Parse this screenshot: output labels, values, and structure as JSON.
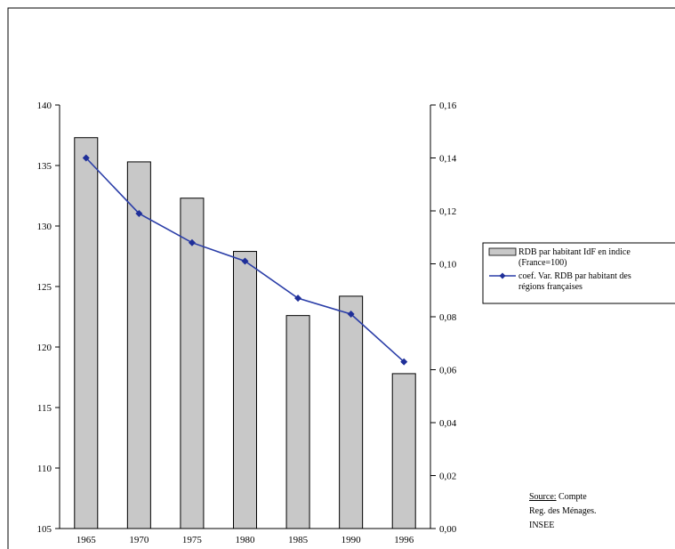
{
  "chart_data": {
    "type": "bar",
    "categories": [
      "1965",
      "1970",
      "1975",
      "1980",
      "1985",
      "1990",
      "1996"
    ],
    "series": [
      {
        "name": "RDB par habitant IdF en indice (France=100)",
        "type": "bar",
        "axis": "left",
        "values": [
          137.3,
          135.3,
          132.3,
          127.9,
          122.6,
          124.2,
          117.8
        ]
      },
      {
        "name": "coef. Var. RDB par habitant des régions françaises",
        "type": "line",
        "axis": "right",
        "values": [
          0.14,
          0.119,
          0.108,
          0.101,
          0.087,
          0.081,
          0.063
        ]
      }
    ],
    "y_left": {
      "min": 105,
      "max": 140,
      "ticks": [
        "105",
        "110",
        "115",
        "120",
        "125",
        "130",
        "135",
        "140"
      ]
    },
    "y_right": {
      "min": 0,
      "max": 0.16,
      "ticks": [
        "0,00",
        "0,02",
        "0,04",
        "0,06",
        "0,08",
        "0,10",
        "0,12",
        "0,14",
        "0,16"
      ]
    },
    "legend": {
      "position": "right",
      "lines": [
        [
          "RDB par habitant IdF en indice",
          "(France=100)"
        ],
        [
          "coef. Var. RDB par habitant des",
          "régions françaises"
        ]
      ]
    },
    "colors": {
      "bar_fill": "#c8c8c8",
      "bar_stroke": "#000000",
      "line": "#2b3ea8",
      "marker": "#1f2f99"
    },
    "title": "",
    "xlabel": "",
    "ylabel": ""
  },
  "source_note": {
    "label": "Source:",
    "line1_rest": " Compte",
    "line2": "Reg. des Ménages.",
    "line3": "INSEE"
  }
}
